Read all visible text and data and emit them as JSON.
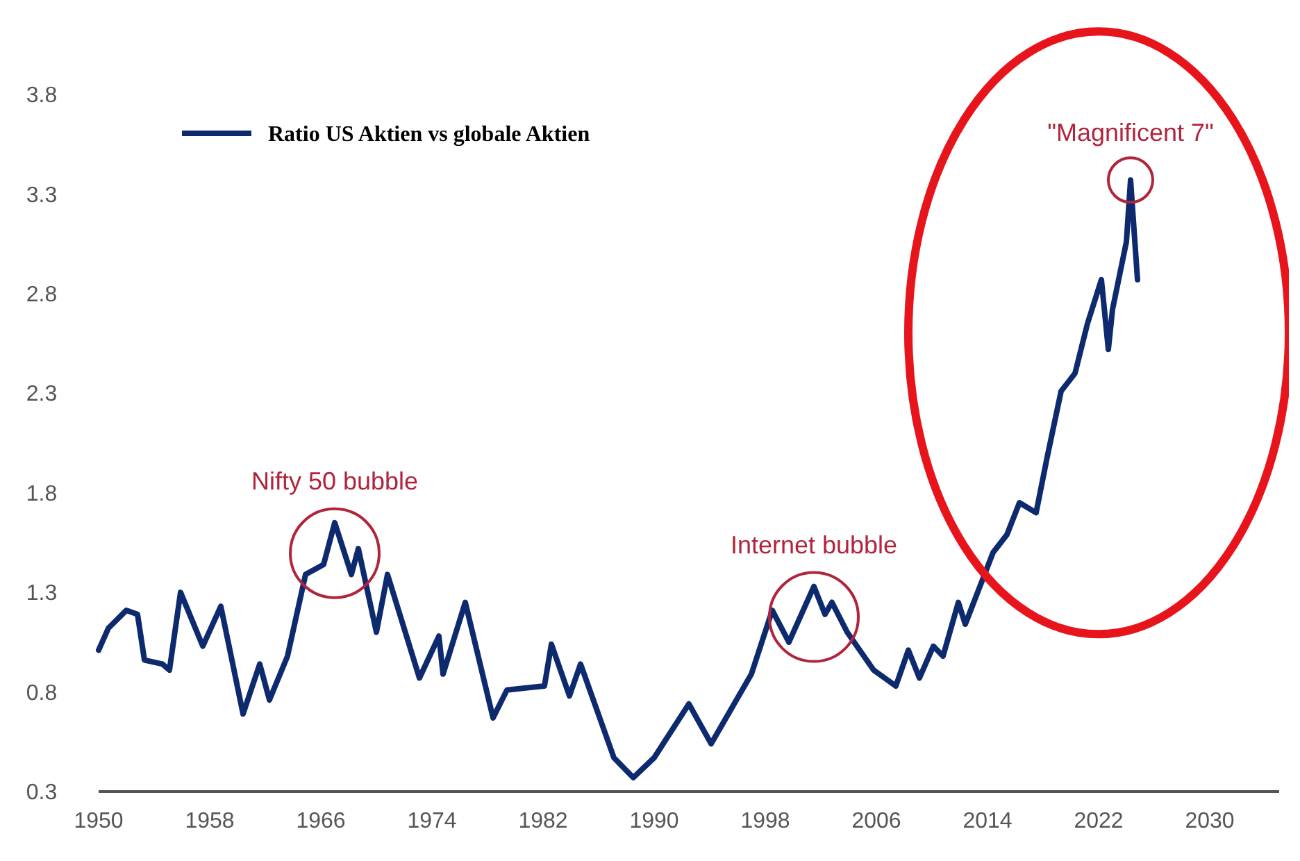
{
  "chart_data": {
    "type": "line",
    "x": [
      1950,
      1950.7,
      1952,
      1952.8,
      1953.3,
      1954.6,
      1955.1,
      1955.9,
      1957.5,
      1958.8,
      1960.4,
      1961.6,
      1962.3,
      1963.6,
      1964.9,
      1966.2,
      1967,
      1968.2,
      1968.7,
      1970,
      1970.8,
      1973.1,
      1974.5,
      1974.8,
      1976.4,
      1978.4,
      1979.4,
      1982.1,
      1982.6,
      1983.9,
      1984.7,
      1987.1,
      1988.5,
      1990,
      1992.5,
      1994.1,
      1997,
      1998.5,
      1999.7,
      2001.5,
      2002.3,
      2002.8,
      2003.9,
      2005.8,
      2007.4,
      2008.3,
      2009.1,
      2010.1,
      2010.8,
      2011.9,
      2012.4,
      2014.4,
      2015.4,
      2016.3,
      2017.5,
      2018.3,
      2019.3,
      2020.3,
      2021.2,
      2022.2,
      2022.7,
      2023,
      2024,
      2024.3,
      2024.8
    ],
    "series": [
      {
        "name": "Ratio US Aktien vs globale Aktien",
        "color": "#0d2a6e",
        "values": [
          1.01,
          1.12,
          1.21,
          1.19,
          0.96,
          0.94,
          0.91,
          1.3,
          1.03,
          1.23,
          0.69,
          0.94,
          0.76,
          0.98,
          1.39,
          1.44,
          1.65,
          1.39,
          1.52,
          1.1,
          1.39,
          0.87,
          1.08,
          0.89,
          1.25,
          0.67,
          0.81,
          0.83,
          1.04,
          0.78,
          0.94,
          0.47,
          0.37,
          0.47,
          0.74,
          0.54,
          0.89,
          1.21,
          1.05,
          1.33,
          1.19,
          1.25,
          1.1,
          0.91,
          0.83,
          1.01,
          0.87,
          1.03,
          0.98,
          1.25,
          1.14,
          1.5,
          1.59,
          1.75,
          1.7,
          1.98,
          2.31,
          2.4,
          2.65,
          2.87,
          2.52,
          2.72,
          3.06,
          3.37,
          2.87
        ]
      }
    ],
    "xlim": [
      1950,
      2035
    ],
    "xticks": [
      1950,
      1958,
      1966,
      1974,
      1982,
      1990,
      1998,
      2006,
      2014,
      2022,
      2030
    ],
    "ylim": [
      0.3,
      3.8
    ],
    "yticks": [
      0.3,
      0.8,
      1.3,
      1.8,
      2.3,
      2.8,
      3.3,
      3.8
    ],
    "grid": false,
    "legend": "top left",
    "line_style": "solid",
    "annotations": [
      {
        "text": "Nifty 50 bubble",
        "x": 1967,
        "y": 1.65
      },
      {
        "text": "Internet bubble",
        "x": 2001.5,
        "y": 1.33
      },
      {
        "text": "\"Magnificent 7\"",
        "x": 2024.3,
        "y": 3.37
      }
    ]
  }
}
